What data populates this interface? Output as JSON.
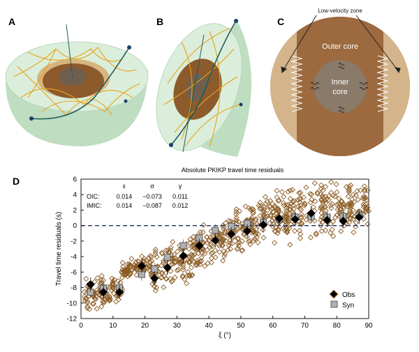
{
  "panels": {
    "a": "A",
    "b": "B",
    "c": "C",
    "d": "D"
  },
  "panel_c": {
    "low_velocity_zone": "Low-velocity zone",
    "outer_core": "Outer core",
    "inner_core_line1": "Inner",
    "inner_core_line2": "core"
  },
  "colors": {
    "mantle": "#cfe6cf",
    "mantle_dark": "#a9cfad",
    "outer_core": "#8c5a2b",
    "outer_core_light": "#b07a45",
    "inner_core": "#8a7a6a",
    "tan": "#d8b98a",
    "rays": "#e8a21a",
    "path": "#1f5c5c",
    "obs": "#8a5a22",
    "syn": "#b0b0b0"
  },
  "table": {
    "headers": [
      "ε",
      "σ",
      "γ"
    ],
    "rows": [
      {
        "label": "OIC:",
        "values": [
          "0.014",
          "−0.073",
          "0.011"
        ]
      },
      {
        "label": "IMIC:",
        "values": [
          "0.014",
          "−0.087",
          "0.012"
        ]
      }
    ]
  },
  "legend": {
    "obs": "Obs",
    "syn": "Syn"
  },
  "chart_data": {
    "type": "scatter",
    "title": "Absolute PKIKP travel time residuals",
    "xlabel": "ξ (°)",
    "ylabel": "Travel time residuals (s)",
    "xlim": [
      0,
      90
    ],
    "ylim": [
      -12,
      6
    ],
    "xticks": [
      0,
      10,
      20,
      30,
      40,
      50,
      60,
      70,
      80,
      90
    ],
    "yticks": [
      6,
      4,
      2,
      0,
      -2,
      -4,
      -6,
      -8,
      -10,
      -12
    ],
    "reference_line_y": 0,
    "series": [
      {
        "name": "Obs",
        "marker": "filled-diamond",
        "color": "#000000",
        "points": [
          [
            3,
            -7.6
          ],
          [
            7,
            -8.6
          ],
          [
            12,
            -8.6
          ],
          [
            19,
            -5.2
          ],
          [
            23,
            -6.8
          ],
          [
            27,
            -5.4
          ],
          [
            32,
            -3.9
          ],
          [
            37,
            -2.6
          ],
          [
            42,
            -1.9
          ],
          [
            47,
            -1.1
          ],
          [
            52,
            -0.7
          ],
          [
            57,
            0.1
          ],
          [
            62,
            0.9
          ],
          [
            67,
            0.8
          ],
          [
            72,
            1.6
          ],
          [
            77,
            0.7
          ],
          [
            82,
            0.6
          ],
          [
            87,
            1.1
          ]
        ]
      },
      {
        "name": "Syn",
        "marker": "filled-square",
        "color": "#b0b0b0",
        "points": [
          [
            3,
            -8.6
          ],
          [
            7,
            -8.1
          ],
          [
            12,
            -8.0
          ],
          [
            19,
            -6.3
          ],
          [
            23,
            -5.6
          ],
          [
            27,
            -4.1
          ],
          [
            32,
            -2.6
          ],
          [
            37,
            -1.6
          ],
          [
            42,
            -0.6
          ],
          [
            47,
            -0.1
          ],
          [
            52,
            0.3
          ],
          [
            57,
            0.4
          ],
          [
            62,
            0.8
          ],
          [
            67,
            1.1
          ],
          [
            72,
            1.1
          ],
          [
            77,
            1.1
          ],
          [
            82,
            1.2
          ],
          [
            87,
            1.3
          ]
        ]
      }
    ],
    "cloud_description_bins": [
      {
        "xmin": 1,
        "xmax": 13,
        "ymin": -10.5,
        "ymax": -6.3
      },
      {
        "xmin": 13,
        "xmax": 22,
        "ymin": -6.5,
        "ymax": -4.0
      },
      {
        "xmin": 22,
        "xmax": 35,
        "ymin": -8.0,
        "ymax": -2.0
      },
      {
        "xmin": 35,
        "xmax": 47,
        "ymin": -5.0,
        "ymax": 0.5
      },
      {
        "xmin": 47,
        "xmax": 60,
        "ymin": -3.0,
        "ymax": 3.5
      },
      {
        "xmin": 60,
        "xmax": 90,
        "ymin": -1.5,
        "ymax": 5.5
      }
    ]
  }
}
